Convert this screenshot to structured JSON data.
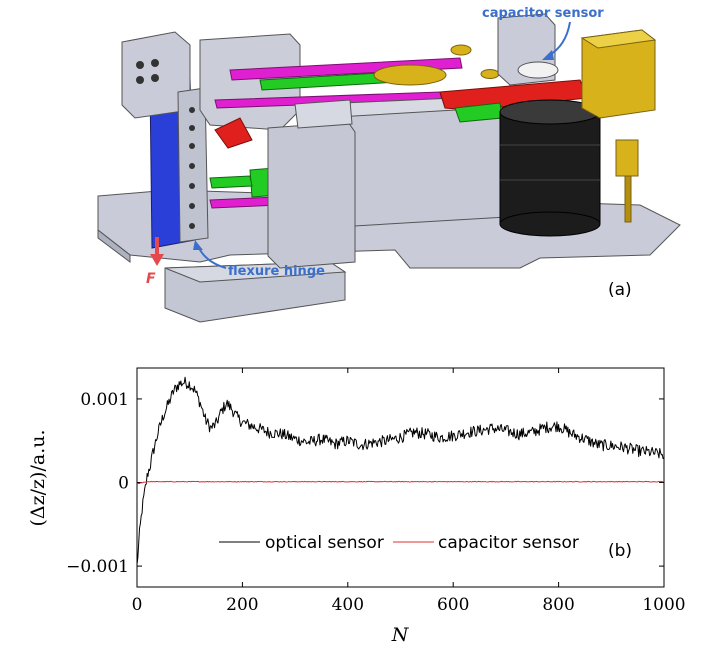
{
  "panel_a": {
    "callout_capacitor": "capacitor sensor",
    "callout_hinge": "flexure hinge",
    "force_label": "F",
    "panel_label": "(a)",
    "colors": {
      "callout_blue": "#3b6fc9",
      "force_red": "#e5484d",
      "frame_gray": "#c9ccd8",
      "magenta": "#e020d0",
      "green": "#22cc22",
      "red": "#e0201c",
      "blue": "#2a3fd8",
      "gold": "#d8b21a",
      "black": "#1c1c1c"
    }
  },
  "chart_data": {
    "type": "line",
    "panel_label": "(b)",
    "xlabel": "N",
    "ylabel": "(Δz/z)/a.u.",
    "xlim": [
      0,
      1000
    ],
    "ylim": [
      -0.00125,
      0.00137
    ],
    "xticks": [
      0,
      200,
      400,
      600,
      800,
      1000
    ],
    "xtick_labels": [
      "0",
      "200",
      "400",
      "600",
      "800",
      "1000"
    ],
    "yticks": [
      -0.001,
      0,
      0.001
    ],
    "ytick_labels": [
      "−0.001",
      "0",
      "0.001"
    ],
    "grid": false,
    "legend_position": "bottom-center",
    "series": [
      {
        "name": "optical sensor",
        "color": "#000000",
        "x": [
          0,
          5,
          10,
          15,
          20,
          25,
          30,
          40,
          50,
          60,
          70,
          80,
          90,
          100,
          110,
          120,
          130,
          140,
          150,
          160,
          170,
          180,
          190,
          200,
          225,
          250,
          275,
          300,
          325,
          350,
          375,
          400,
          425,
          450,
          475,
          500,
          525,
          550,
          575,
          600,
          625,
          650,
          675,
          700,
          725,
          750,
          775,
          800,
          825,
          850,
          875,
          900,
          925,
          950,
          975,
          1000
        ],
        "y": [
          -0.001,
          -0.0006,
          -0.0003,
          -0.0001,
          0.0001,
          0.0002,
          0.00035,
          0.0006,
          0.0008,
          0.00095,
          0.0011,
          0.00118,
          0.0012,
          0.00118,
          0.0011,
          0.00095,
          0.00075,
          0.00065,
          0.0007,
          0.00085,
          0.00095,
          0.00088,
          0.00078,
          0.00072,
          0.00066,
          0.0006,
          0.00058,
          0.00052,
          0.00048,
          0.00052,
          0.00046,
          0.0005,
          0.00045,
          0.00048,
          0.0005,
          0.00054,
          0.0006,
          0.00058,
          0.00054,
          0.00056,
          0.0006,
          0.00062,
          0.00065,
          0.00062,
          0.00058,
          0.0006,
          0.00066,
          0.00068,
          0.00058,
          0.00052,
          0.00045,
          0.00044,
          0.00042,
          0.00038,
          0.00036,
          0.00033
        ],
        "noise_amplitude": 7e-05
      },
      {
        "name": "capacitor sensor",
        "color": "#e03030",
        "x": [
          0,
          10,
          20,
          30,
          1000
        ],
        "y": [
          -2e-05,
          0.0,
          1e-05,
          1e-05,
          1e-05
        ],
        "noise_amplitude": 4e-06
      }
    ]
  }
}
